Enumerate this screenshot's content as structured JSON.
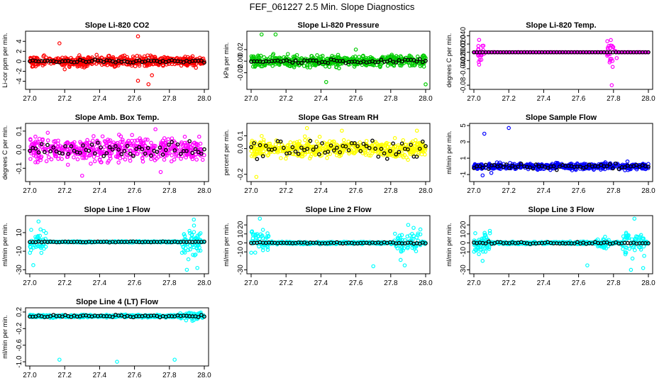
{
  "figure_title": "FEF_061227  2.5 Min. Slope Diagnostics",
  "colors": {
    "co2": "#ff0000",
    "pressure": "#00cc00",
    "temp": "#ff00ff",
    "rh": "#ffff00",
    "sample_flow": "#0000ff",
    "line_flow": "#00ffff",
    "marker_overlay": "#000000",
    "axis": "#000000"
  },
  "chart_data": [
    {
      "id": "co2",
      "type": "scatter",
      "title": "Slope Li-820 CO2",
      "ylabel": "Li-cor ppm per min.",
      "xlim": [
        27.0,
        28.0
      ],
      "xticks": [
        "27.0",
        "27.2",
        "27.4",
        "27.6",
        "27.8",
        "28.0"
      ],
      "ylim": [
        -5.2,
        5.6
      ],
      "yticks": [
        "-4",
        "-2",
        "0",
        "2",
        "4"
      ],
      "ytick_values": [
        -4,
        -2,
        0,
        2,
        4
      ],
      "color_key": "co2",
      "noise": 0.9,
      "overlay_noise": 0.25,
      "outliers": [
        [
          27.17,
          3.6
        ],
        [
          27.62,
          5.0
        ],
        [
          27.68,
          -4.6
        ],
        [
          27.62,
          -3.9
        ],
        [
          27.2,
          -1.6
        ],
        [
          27.7,
          -2.8
        ]
      ]
    },
    {
      "id": "pressure",
      "type": "scatter",
      "title": "Slope Li-820 Pressure",
      "ylabel": "kPa per min.",
      "xlim": [
        27.0,
        28.0
      ],
      "xticks": [
        "27.0",
        "27.2",
        "27.4",
        "27.6",
        "27.8",
        "28.0"
      ],
      "ylim": [
        -0.045,
        0.048
      ],
      "yticks": [
        "-0.02",
        "0.00",
        "0.02"
      ],
      "ytick_values": [
        -0.02,
        0.0,
        0.02
      ],
      "color_key": "pressure",
      "noise": 0.009,
      "overlay_noise": 0.003,
      "outliers": [
        [
          27.06,
          0.046
        ],
        [
          27.14,
          0.046
        ],
        [
          28.0,
          -0.04
        ],
        [
          27.43,
          -0.036
        ],
        [
          27.6,
          0.02
        ]
      ]
    },
    {
      "id": "temp",
      "type": "scatter",
      "title": "Slope Li-820 Temp.",
      "ylabel": "degrees C per min.",
      "xlim": [
        27.0,
        28.0
      ],
      "xticks": [
        "27.0",
        "27.2",
        "27.4",
        "27.6",
        "27.8",
        "28.0"
      ],
      "ylim": [
        -0.085,
        0.046
      ],
      "yticks": [
        "-0.08",
        "-0.04",
        "-0.02",
        "0.000",
        "0.020",
        "0.040"
      ],
      "ytick_values": [
        -0.08,
        -0.04,
        -0.02,
        0.0,
        0.02,
        0.04
      ],
      "color_key": "temp",
      "noise": 0.0,
      "overlay_noise": 0.0,
      "clusters": [
        [
          27.02,
          27.06,
          0.022
        ],
        [
          27.75,
          27.82,
          0.032
        ]
      ],
      "outliers": [
        [
          27.79,
          -0.08
        ],
        [
          27.03,
          0.03
        ],
        [
          27.03,
          -0.03
        ]
      ]
    },
    {
      "id": "box_temp",
      "type": "scatter",
      "title": "Slope Amb. Box Temp.",
      "ylabel": "degrees C per min.",
      "xlim": [
        27.0,
        28.0
      ],
      "xticks": [
        "27.0",
        "27.2",
        "27.4",
        "27.6",
        "27.8",
        "28.0"
      ],
      "ylim": [
        -0.16,
        0.13
      ],
      "yticks": [
        "-0.1",
        "0.0",
        "0.1"
      ],
      "ytick_values": [
        -0.1,
        0.0,
        0.1
      ],
      "color_key": "temp",
      "noise": 0.055,
      "overlay_noise": 0.035,
      "outliers": [
        [
          27.72,
          0.11
        ],
        [
          27.3,
          -0.14
        ],
        [
          27.75,
          -0.12
        ]
      ]
    },
    {
      "id": "rh",
      "type": "scatter",
      "title": "Slope Gas Stream RH",
      "ylabel": "percent per min.",
      "xlim": [
        27.0,
        28.0
      ],
      "xticks": [
        "27.0",
        "27.2",
        "27.4",
        "27.6",
        "27.8",
        "28.0"
      ],
      "ylim": [
        -0.24,
        0.18
      ],
      "yticks": [
        "-0.2",
        "0.0",
        "0.1"
      ],
      "ytick_values": [
        -0.2,
        0.0,
        0.1
      ],
      "color_key": "rh",
      "noise": 0.06,
      "overlay_noise": 0.06,
      "outliers": [
        [
          27.03,
          -0.22
        ],
        [
          27.32,
          0.16
        ],
        [
          27.52,
          0.14
        ],
        [
          27.95,
          0.14
        ]
      ]
    },
    {
      "id": "sample_flow",
      "type": "scatter",
      "title": "Slope Sample Flow",
      "ylabel": "ml/min per min.",
      "xlim": [
        27.0,
        28.0
      ],
      "xticks": [
        "27.0",
        "27.2",
        "27.4",
        "27.6",
        "27.8",
        "28.0"
      ],
      "ylim": [
        -1.6,
        5.0
      ],
      "yticks": [
        "-1",
        "1",
        "3",
        "5"
      ],
      "ytick_values": [
        -1,
        1,
        3,
        5
      ],
      "color_key": "sample_flow",
      "noise": 0.35,
      "overlay_noise": 0.3,
      "outliers": [
        [
          27.06,
          4.0
        ],
        [
          27.2,
          4.7
        ],
        [
          27.05,
          -1.1
        ],
        [
          27.1,
          -0.8
        ],
        [
          27.88,
          0.6
        ]
      ]
    },
    {
      "id": "line1",
      "type": "scatter",
      "title": "Slope Line 1 Flow",
      "ylabel": "ml/min per min.",
      "xlim": [
        27.0,
        28.0
      ],
      "xticks": [
        "27.0",
        "27.2",
        "27.4",
        "27.6",
        "27.8",
        "28.0"
      ],
      "ylim": [
        -32,
        26
      ],
      "yticks": [
        "-30",
        "-10",
        "10"
      ],
      "ytick_values": [
        -30,
        -10,
        10
      ],
      "color_key": "line_flow",
      "noise": 0.6,
      "overlay_noise": 0.4,
      "clusters": [
        [
          27.0,
          27.1,
          12
        ],
        [
          27.87,
          27.98,
          14
        ]
      ],
      "outliers": [
        [
          27.05,
          22
        ],
        [
          27.02,
          -25
        ],
        [
          27.94,
          24
        ],
        [
          27.9,
          -30
        ],
        [
          27.96,
          -28
        ]
      ]
    },
    {
      "id": "line2",
      "type": "scatter",
      "title": "Slope Line 2 Flow",
      "ylabel": "ml/min per min.",
      "xlim": [
        27.0,
        28.0
      ],
      "xticks": [
        "27.0",
        "27.2",
        "27.4",
        "27.6",
        "27.8",
        "28.0"
      ],
      "ylim": [
        -32,
        28
      ],
      "yticks": [
        "-30",
        "-10",
        "0",
        "10",
        "20"
      ],
      "ytick_values": [
        -30,
        -10,
        0,
        10,
        20
      ],
      "color_key": "line_flow",
      "noise": 1.2,
      "overlay_noise": 0.8,
      "clusters": [
        [
          27.0,
          27.1,
          10
        ],
        [
          27.82,
          27.98,
          12
        ]
      ],
      "outliers": [
        [
          27.05,
          27
        ],
        [
          27.7,
          -26
        ],
        [
          27.88,
          -25
        ],
        [
          27.9,
          20
        ],
        [
          27.97,
          15
        ]
      ]
    },
    {
      "id": "line3",
      "type": "scatter",
      "title": "Slope Line 3 Flow",
      "ylabel": "ml/min per min.",
      "xlim": [
        27.0,
        28.0
      ],
      "xticks": [
        "27.0",
        "27.2",
        "27.4",
        "27.6",
        "27.8",
        "28.0"
      ],
      "ylim": [
        -32,
        28
      ],
      "yticks": [
        "-30",
        "-10",
        "0",
        "10",
        "20"
      ],
      "ytick_values": [
        -30,
        -10,
        0,
        10,
        20
      ],
      "color_key": "line_flow",
      "noise": 1.2,
      "overlay_noise": 1.0,
      "clusters": [
        [
          27.0,
          27.1,
          10
        ],
        [
          27.7,
          27.78,
          6
        ],
        [
          27.85,
          27.98,
          13
        ]
      ],
      "outliers": [
        [
          27.92,
          27
        ],
        [
          27.05,
          -20
        ],
        [
          27.9,
          -30
        ],
        [
          27.65,
          -25
        ],
        [
          27.97,
          -28
        ]
      ]
    },
    {
      "id": "line4",
      "type": "scatter",
      "title": "Slope Line 4 (LT) Flow",
      "ylabel": "ml/min per min.",
      "xlim": [
        27.0,
        28.0
      ],
      "xticks": [
        "27.0",
        "27.2",
        "27.4",
        "27.6",
        "27.8",
        "28.0"
      ],
      "ylim": [
        -1.05,
        0.25
      ],
      "yticks": [
        "-1.0",
        "-0.6",
        "-0.2",
        "0.2"
      ],
      "ytick_values": [
        -1.0,
        -0.6,
        -0.2,
        0.2
      ],
      "color_key": "line_flow",
      "noise": 0.03,
      "overlay_noise": 0.025,
      "center": 0.1,
      "clusters": [
        [
          27.85,
          27.98,
          0.08
        ]
      ],
      "outliers": [
        [
          27.17,
          -0.95
        ],
        [
          27.5,
          -1.0
        ],
        [
          27.83,
          -0.95
        ]
      ]
    }
  ]
}
